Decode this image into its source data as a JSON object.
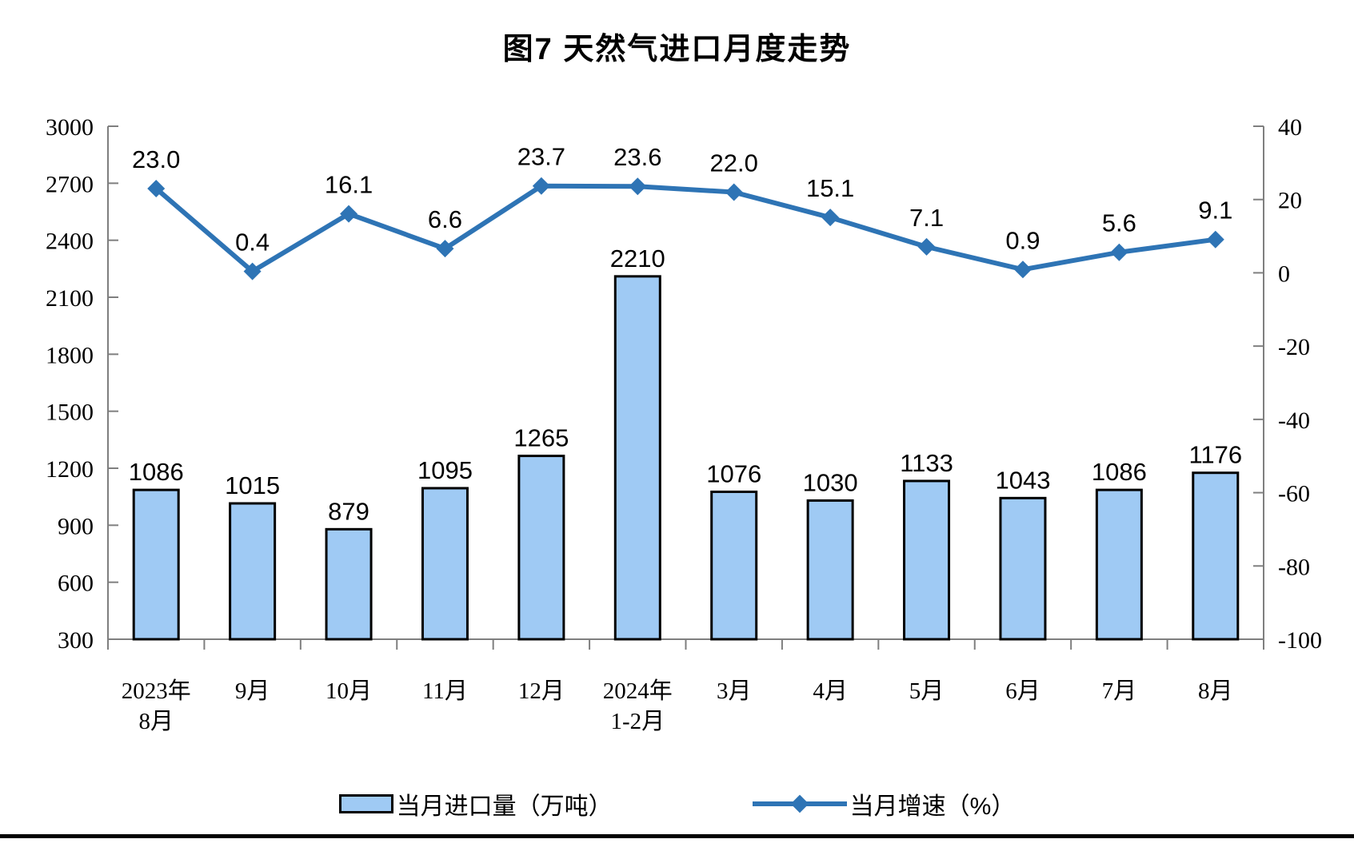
{
  "page": {
    "title": "图7 天然气进口月度走势",
    "legend": {
      "bar_label": "当月进口量（万吨）",
      "line_label": "当月增速（%）"
    }
  },
  "chart_data": {
    "type": "bar+line",
    "title": "图7 天然气进口月度走势",
    "categories": [
      [
        "2023年",
        "8月"
      ],
      [
        "9月"
      ],
      [
        "10月"
      ],
      [
        "11月"
      ],
      [
        "12月"
      ],
      [
        "2024年",
        "1-2月"
      ],
      [
        "3月"
      ],
      [
        "4月"
      ],
      [
        "5月"
      ],
      [
        "6月"
      ],
      [
        "7月"
      ],
      [
        "8月"
      ]
    ],
    "series": [
      {
        "name": "当月进口量（万吨）",
        "type": "bar",
        "axis": "left",
        "values": [
          1086,
          1015,
          879,
          1095,
          1265,
          2210,
          1076,
          1030,
          1133,
          1043,
          1086,
          1176
        ],
        "labels": [
          "1086",
          "1015",
          "879",
          "1095",
          "1265",
          "2210",
          "1076",
          "1030",
          "1133",
          "1043",
          "1086",
          "1176"
        ]
      },
      {
        "name": "当月增速（%）",
        "type": "line",
        "axis": "right",
        "values": [
          23.0,
          0.4,
          16.1,
          6.6,
          23.7,
          23.6,
          22.0,
          15.1,
          7.1,
          0.9,
          5.6,
          9.1
        ],
        "labels": [
          "23.0",
          "0.4",
          "16.1",
          "6.6",
          "23.7",
          "23.6",
          "22.0",
          "15.1",
          "7.1",
          "0.9",
          "5.6",
          "9.1"
        ]
      }
    ],
    "left_axis": {
      "min": 300,
      "max": 3000,
      "step": 300,
      "ticks": [
        300,
        600,
        900,
        1200,
        1500,
        1800,
        2100,
        2400,
        2700,
        3000
      ]
    },
    "right_axis": {
      "min": -100,
      "max": 40,
      "step": 20,
      "ticks": [
        -100,
        -80,
        -60,
        -40,
        -20,
        0,
        20,
        40
      ]
    },
    "grid": false,
    "legend_position": "bottom",
    "colors": {
      "bar_fill": "#9FCAF4",
      "bar_border": "#000000",
      "line": "#2E74B5",
      "axis": "#7F7F7F",
      "text": "#000000"
    }
  }
}
